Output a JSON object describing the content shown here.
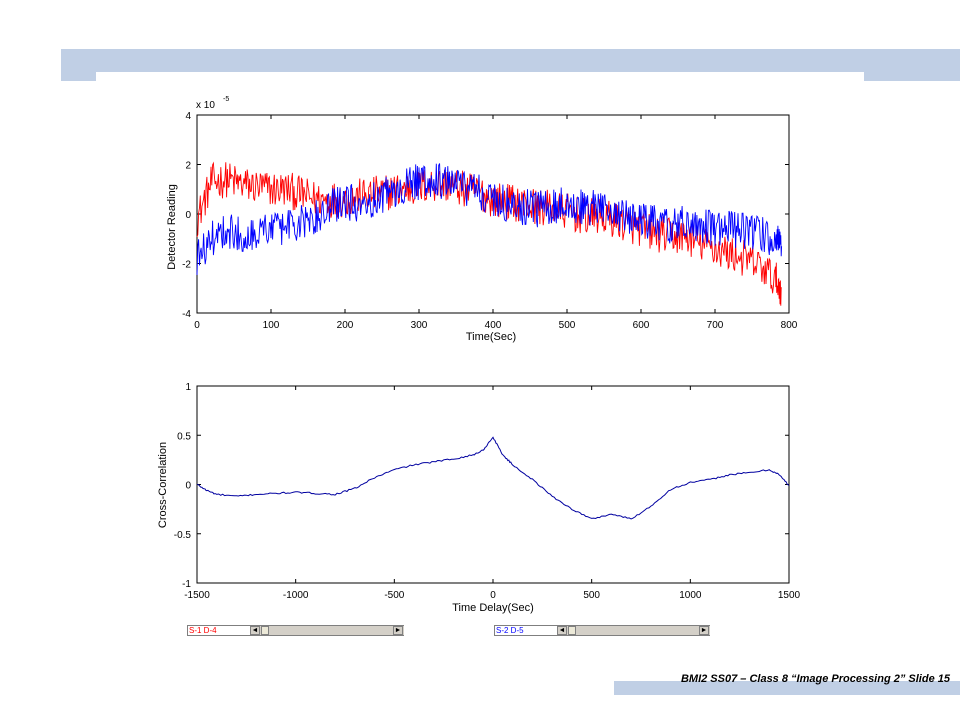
{
  "slide": {
    "footer": "BMI2 SS07 – Class 8 “Image Processing 2” Slide 15"
  },
  "chart_data": [
    {
      "type": "line",
      "xlabel": "Time(Sec)",
      "ylabel": "Detector Reading",
      "y_scale_label": "x 10",
      "y_scale_exponent": "-5",
      "xlim": [
        0,
        800
      ],
      "ylim": [
        -4,
        4
      ],
      "x_ticks": [
        0,
        100,
        200,
        300,
        400,
        500,
        600,
        700,
        800
      ],
      "y_ticks": [
        -4,
        -2,
        0,
        2,
        4
      ],
      "series": [
        {
          "color": "#ff0000",
          "x": [
            0,
            20,
            40,
            60,
            80,
            100,
            120,
            140,
            160,
            180,
            200,
            220,
            240,
            260,
            280,
            300,
            320,
            340,
            360,
            380,
            400,
            420,
            440,
            460,
            480,
            500,
            520,
            540,
            560,
            580,
            600,
            620,
            640,
            660,
            680,
            700,
            720,
            740,
            760,
            780,
            790
          ],
          "values": [
            -0.2,
            1.3,
            1.4,
            1.2,
            1.1,
            1.0,
            1.0,
            0.8,
            0.6,
            0.6,
            0.6,
            0.7,
            0.8,
            0.9,
            1.0,
            1.1,
            1.2,
            1.2,
            1.0,
            0.9,
            0.6,
            0.5,
            0.4,
            0.3,
            0.2,
            0.1,
            -0.1,
            -0.1,
            -0.2,
            -0.4,
            -0.6,
            -0.8,
            -0.9,
            -0.9,
            -1.2,
            -1.4,
            -1.6,
            -1.8,
            -2.1,
            -2.6,
            -3.0
          ]
        },
        {
          "color": "#0000ff",
          "x": [
            0,
            20,
            40,
            60,
            80,
            100,
            120,
            140,
            160,
            180,
            200,
            220,
            240,
            260,
            280,
            300,
            320,
            340,
            360,
            380,
            400,
            420,
            440,
            460,
            480,
            500,
            520,
            540,
            560,
            580,
            600,
            620,
            640,
            660,
            680,
            700,
            720,
            740,
            760,
            780,
            790
          ],
          "values": [
            -1.8,
            -1.0,
            -0.6,
            -0.9,
            -0.7,
            -0.6,
            -0.5,
            -0.4,
            -0.2,
            0.3,
            0.5,
            0.4,
            0.6,
            0.9,
            1.1,
            1.3,
            1.4,
            1.3,
            1.1,
            0.9,
            0.6,
            0.4,
            0.3,
            0.2,
            0.3,
            0.4,
            0.3,
            0.2,
            0.0,
            -0.1,
            -0.3,
            -0.4,
            -0.5,
            -0.4,
            -0.5,
            -0.6,
            -0.6,
            -0.7,
            -0.8,
            -1.1,
            -1.3
          ]
        }
      ]
    },
    {
      "type": "line",
      "xlabel": "Time Delay(Sec)",
      "ylabel": "Cross-Correlation",
      "xlim": [
        -1500,
        1500
      ],
      "ylim": [
        -1,
        1
      ],
      "x_ticks": [
        -1500,
        -1000,
        -500,
        0,
        500,
        1000,
        1500
      ],
      "y_ticks": [
        -1,
        -0.5,
        0,
        0.5,
        1
      ],
      "series": [
        {
          "color": "#0000a0",
          "x": [
            -1500,
            -1450,
            -1400,
            -1300,
            -1200,
            -1100,
            -1000,
            -900,
            -800,
            -700,
            -600,
            -500,
            -400,
            -300,
            -200,
            -100,
            -50,
            0,
            50,
            100,
            200,
            300,
            400,
            500,
            600,
            700,
            800,
            900,
            1000,
            1100,
            1200,
            1300,
            1400,
            1450,
            1500
          ],
          "values": [
            0.0,
            -0.06,
            -0.1,
            -0.12,
            -0.1,
            -0.09,
            -0.08,
            -0.09,
            -0.1,
            -0.04,
            0.07,
            0.15,
            0.2,
            0.23,
            0.26,
            0.3,
            0.35,
            0.48,
            0.3,
            0.2,
            0.05,
            -0.12,
            -0.25,
            -0.35,
            -0.3,
            -0.35,
            -0.22,
            -0.05,
            0.02,
            0.05,
            0.1,
            0.12,
            0.15,
            0.1,
            -0.01
          ]
        }
      ]
    }
  ],
  "controls": {
    "left_selector": {
      "label": "S-1  D-4",
      "color": "#ff0000",
      "left_arrow": "◄",
      "right_arrow": "►"
    },
    "right_selector": {
      "label": "S-2  D-5",
      "color": "#0000ff",
      "left_arrow": "◄",
      "right_arrow": "►"
    }
  }
}
